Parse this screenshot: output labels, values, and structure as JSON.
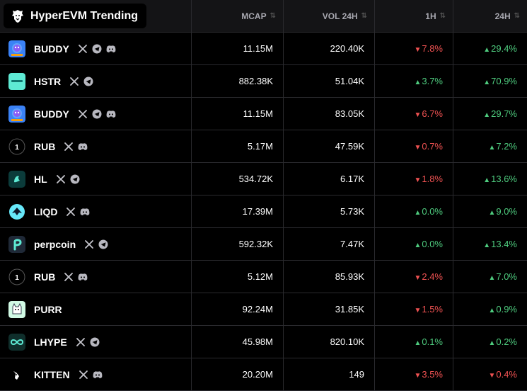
{
  "header": {
    "title": "HyperEVM Trending",
    "columns": [
      "MCAP",
      "VOL 24H",
      "1H",
      "24H"
    ]
  },
  "rows": [
    {
      "symbol": "BUDDY",
      "logo": "buddy",
      "socials": [
        "x-icon",
        "telegram-icon",
        "discord-icon"
      ],
      "mcap": "11.15M",
      "vol": "220.40K",
      "h1": {
        "dir": "down",
        "val": "7.8%"
      },
      "h24": {
        "dir": "up",
        "val": "29.4%"
      }
    },
    {
      "symbol": "HSTR",
      "logo": "hstr",
      "socials": [
        "x-icon",
        "telegram-icon"
      ],
      "mcap": "882.38K",
      "vol": "51.04K",
      "h1": {
        "dir": "up",
        "val": "3.7%"
      },
      "h24": {
        "dir": "up",
        "val": "70.9%"
      }
    },
    {
      "symbol": "BUDDY",
      "logo": "buddy",
      "socials": [
        "x-icon",
        "telegram-icon",
        "discord-icon"
      ],
      "mcap": "11.15M",
      "vol": "83.05K",
      "h1": {
        "dir": "down",
        "val": "6.7%"
      },
      "h24": {
        "dir": "up",
        "val": "29.7%"
      }
    },
    {
      "symbol": "RUB",
      "logo": "rub",
      "socials": [
        "x-icon",
        "discord-icon"
      ],
      "mcap": "5.17M",
      "vol": "47.59K",
      "h1": {
        "dir": "down",
        "val": "0.7%"
      },
      "h24": {
        "dir": "up",
        "val": "7.2%"
      }
    },
    {
      "symbol": "HL",
      "logo": "hl",
      "socials": [
        "x-icon",
        "telegram-icon"
      ],
      "mcap": "534.72K",
      "vol": "6.17K",
      "h1": {
        "dir": "down",
        "val": "1.8%"
      },
      "h24": {
        "dir": "up",
        "val": "13.6%"
      }
    },
    {
      "symbol": "LIQD",
      "logo": "liqd",
      "socials": [
        "x-icon",
        "discord-icon"
      ],
      "mcap": "17.39M",
      "vol": "5.73K",
      "h1": {
        "dir": "up",
        "val": "0.0%"
      },
      "h24": {
        "dir": "up",
        "val": "9.0%"
      }
    },
    {
      "symbol": "perpcoin",
      "logo": "perp",
      "socials": [
        "x-icon",
        "telegram-icon"
      ],
      "mcap": "592.32K",
      "vol": "7.47K",
      "h1": {
        "dir": "up",
        "val": "0.0%"
      },
      "h24": {
        "dir": "up",
        "val": "13.4%"
      }
    },
    {
      "symbol": "RUB",
      "logo": "rub",
      "socials": [
        "x-icon",
        "discord-icon"
      ],
      "mcap": "5.12M",
      "vol": "85.93K",
      "h1": {
        "dir": "down",
        "val": "2.4%"
      },
      "h24": {
        "dir": "up",
        "val": "7.0%"
      }
    },
    {
      "symbol": "PURR",
      "logo": "purr",
      "socials": [],
      "mcap": "92.24M",
      "vol": "31.85K",
      "h1": {
        "dir": "down",
        "val": "1.5%"
      },
      "h24": {
        "dir": "up",
        "val": "0.9%"
      }
    },
    {
      "symbol": "LHYPE",
      "logo": "lhype",
      "socials": [
        "x-icon",
        "telegram-icon"
      ],
      "mcap": "45.98M",
      "vol": "820.10K",
      "h1": {
        "dir": "up",
        "val": "0.1%"
      },
      "h24": {
        "dir": "up",
        "val": "0.2%"
      }
    },
    {
      "symbol": "KITTEN",
      "logo": "kitten",
      "socials": [
        "x-icon",
        "discord-icon"
      ],
      "mcap": "20.20M",
      "vol": "149",
      "h1": {
        "dir": "down",
        "val": "3.5%"
      },
      "h24": {
        "dir": "down",
        "val": "0.4%"
      }
    }
  ],
  "rub_logo_text": "1",
  "colors": {
    "up": "#4ecb7e",
    "down": "#f05252",
    "background": "#000000",
    "header": "#141416"
  }
}
